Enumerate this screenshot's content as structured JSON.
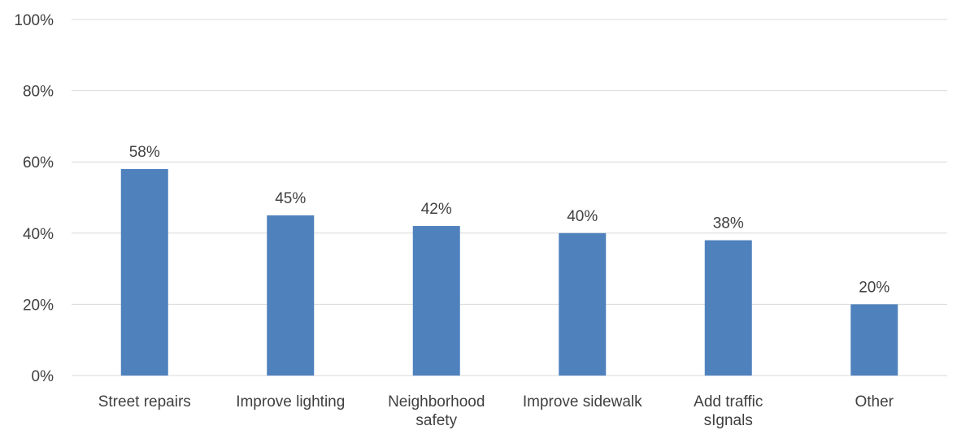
{
  "colors": {
    "bar": "#4f81bd",
    "grid": "#d9d9d9",
    "text": "#404040"
  },
  "chart_data": {
    "type": "bar",
    "title": "",
    "xlabel": "",
    "ylabel": "",
    "ylim": [
      0,
      100
    ],
    "y_ticks": [
      "0%",
      "20%",
      "40%",
      "60%",
      "80%",
      "100%"
    ],
    "y_tick_values": [
      0,
      20,
      40,
      60,
      80,
      100
    ],
    "grid": true,
    "legend": "none",
    "categories": [
      [
        "Street repairs"
      ],
      [
        "Improve lighting"
      ],
      [
        "Neighborhood",
        "safety"
      ],
      [
        "Improve sidewalk"
      ],
      [
        "Add traffic",
        "sIgnals"
      ],
      [
        "Other"
      ]
    ],
    "values": [
      58,
      45,
      42,
      40,
      38,
      20
    ],
    "data_labels": [
      "58%",
      "45%",
      "42%",
      "40%",
      "38%",
      "20%"
    ]
  }
}
